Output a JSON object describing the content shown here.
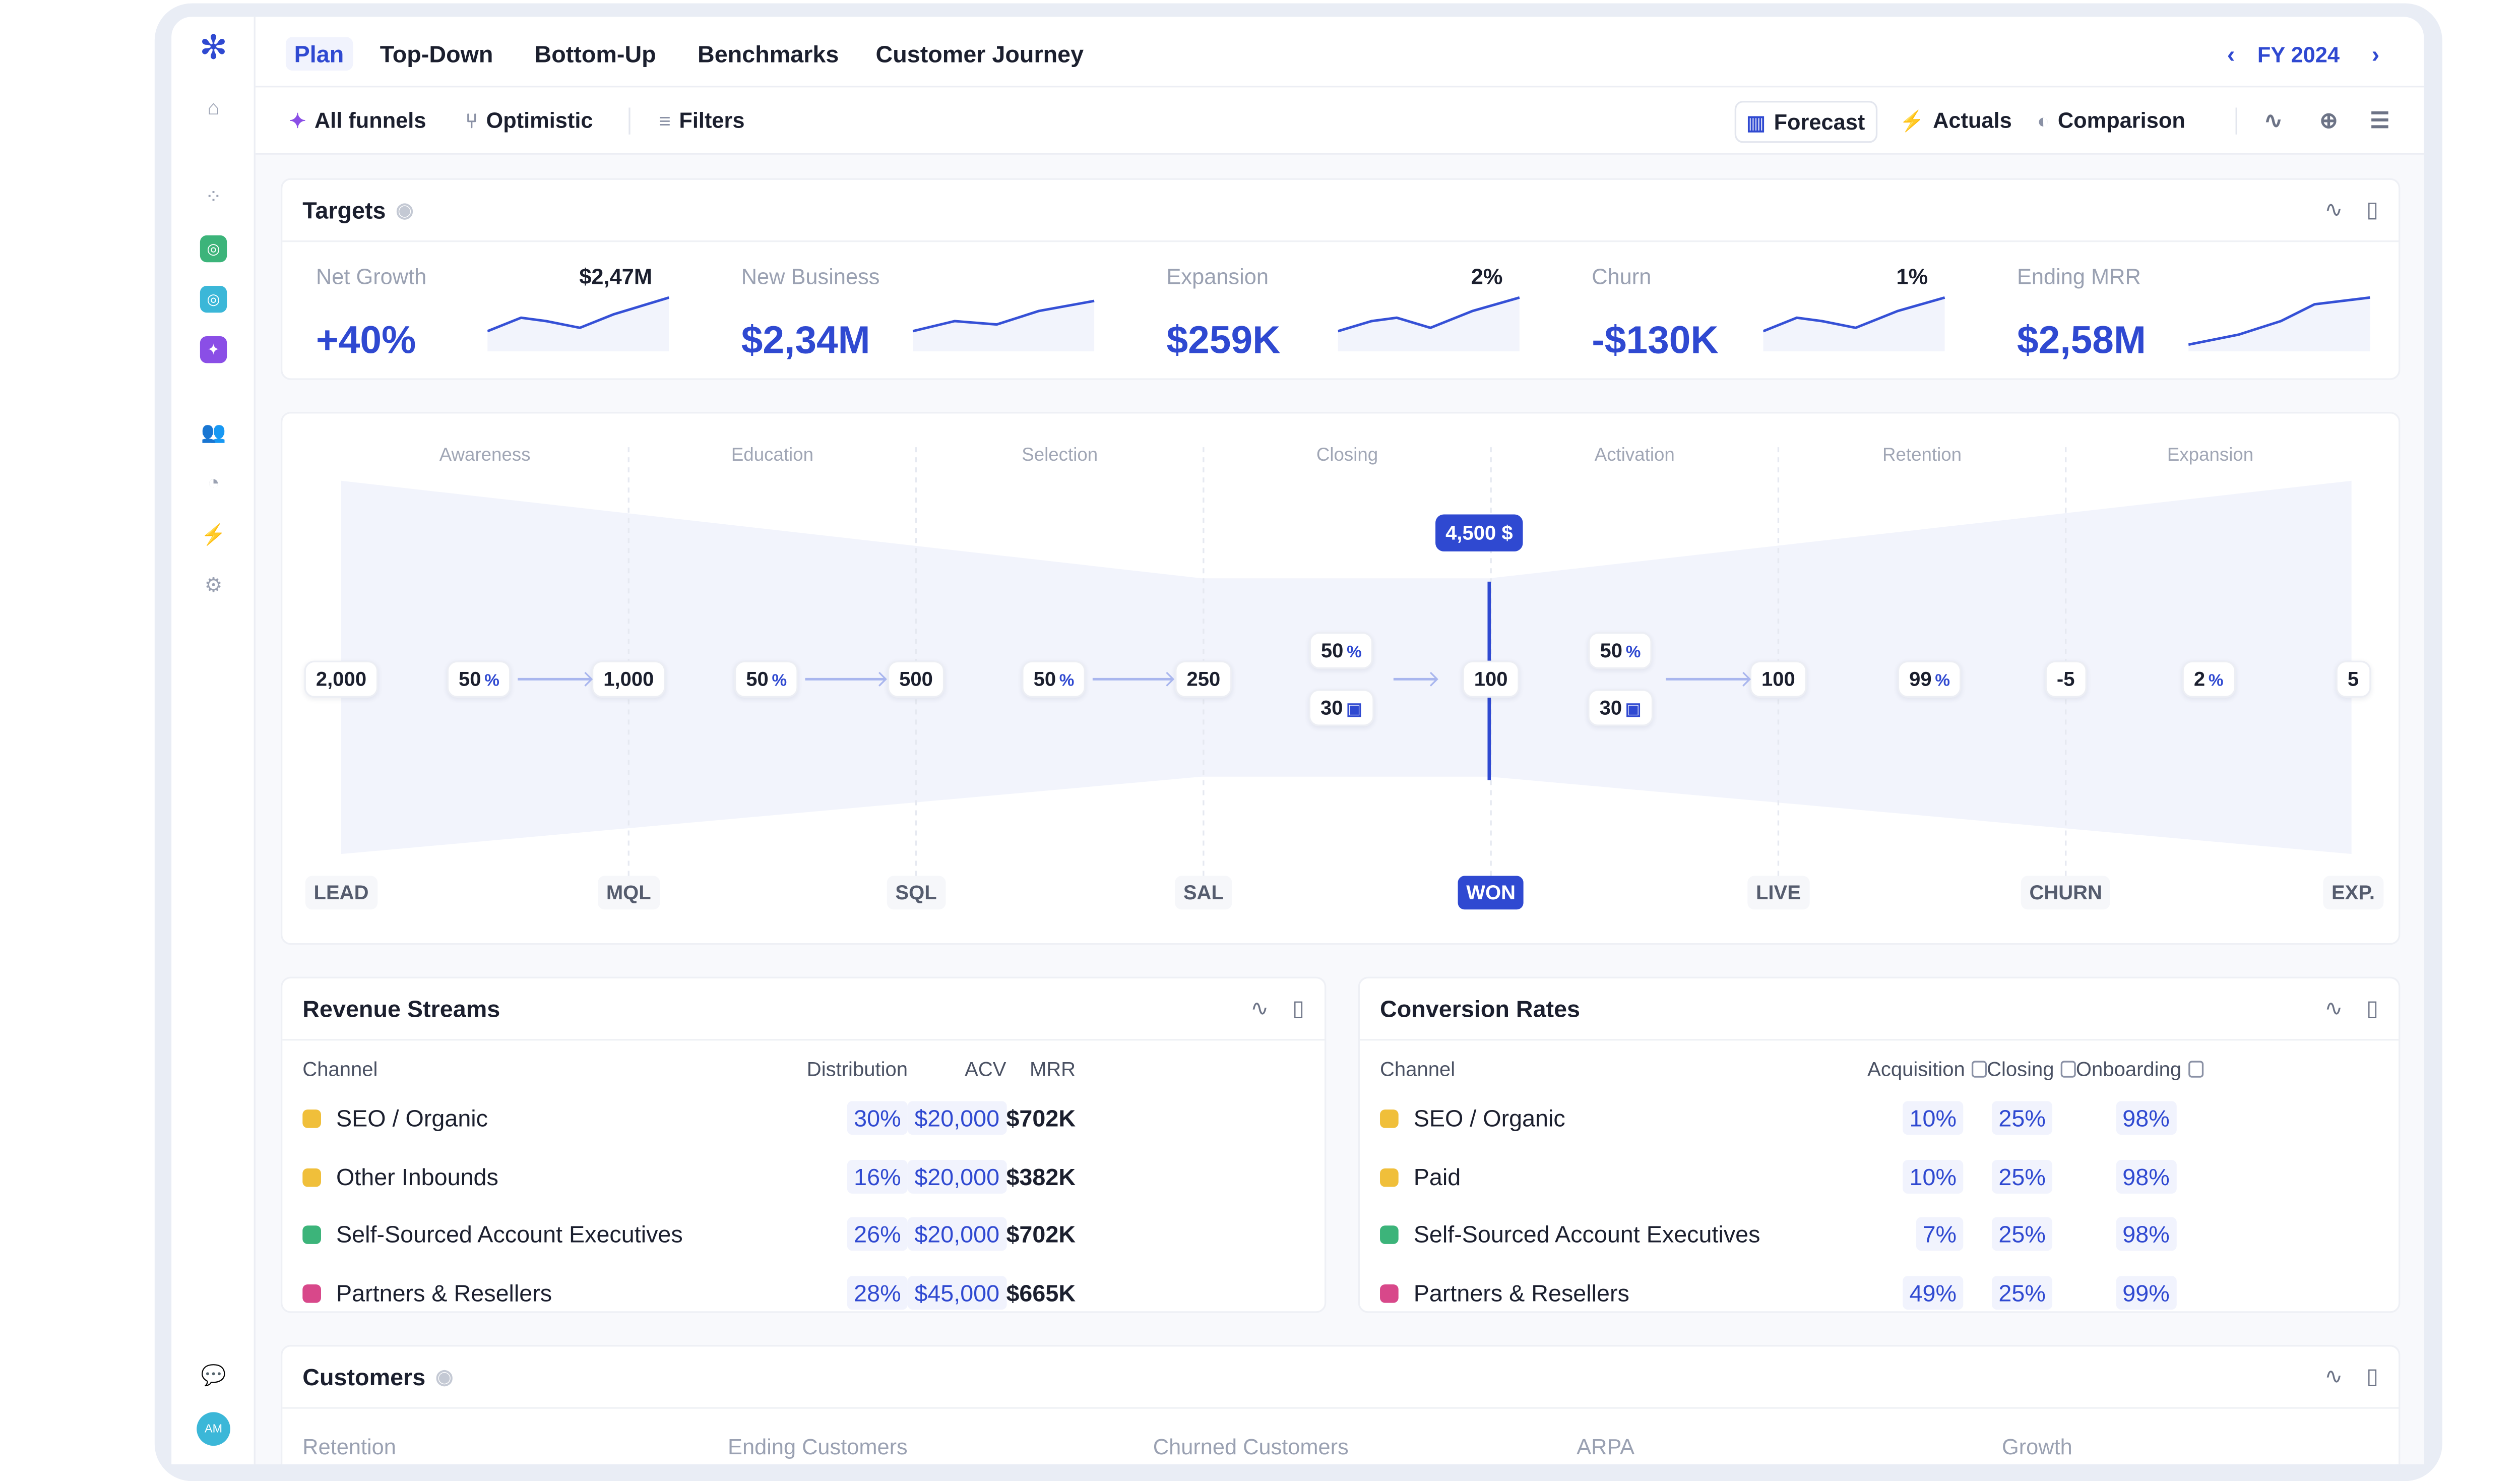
{
  "nav": {
    "tabs": [
      "Plan",
      "Top-Down",
      "Bottom-Up",
      "Benchmarks",
      "Customer Journey"
    ],
    "active": "Plan",
    "period": "FY 2024"
  },
  "toolbar": {
    "funnels": "All funnels",
    "scenario": "Optimistic",
    "filters": "Filters",
    "views": [
      "Forecast",
      "Actuals",
      "Comparison"
    ],
    "active_view": "Forecast"
  },
  "targets": {
    "title": "Targets",
    "kpis": [
      {
        "label": "Net Growth",
        "side": "$2,47M",
        "value": "+40%"
      },
      {
        "label": "New Business",
        "side": "",
        "value": "$2,34M"
      },
      {
        "label": "Expansion",
        "side": "2%",
        "value": "$259K"
      },
      {
        "label": "Churn",
        "side": "1%",
        "value": "-$130K"
      },
      {
        "label": "Ending MRR",
        "side": "",
        "value": "$2,58M"
      }
    ]
  },
  "funnel": {
    "phases": [
      "Awareness",
      "Education",
      "Selection",
      "Closing",
      "Activation",
      "Retention",
      "Expansion"
    ],
    "stages": [
      "LEAD",
      "MQL",
      "SQL",
      "SAL",
      "WON",
      "LIVE",
      "CHURN",
      "EXP."
    ],
    "active_stage": "WON",
    "stage_values": [
      "2,000",
      "1,000",
      "500",
      "250",
      "100",
      "100",
      "-5",
      "5"
    ],
    "rates": [
      "50",
      "50",
      "50",
      "50",
      "50",
      "99",
      "2"
    ],
    "rate_unit": "%",
    "cycle_days": [
      "30",
      "30"
    ],
    "tooltip": "4,500 $",
    "accent": "#2f49d1"
  },
  "revenue": {
    "title": "Revenue Streams",
    "columns": [
      "Channel",
      "Distribution",
      "ACV",
      "MRR"
    ],
    "rows": [
      {
        "channel": "SEO / Organic",
        "color": "#f0bf3a",
        "distribution": "30%",
        "acv": "$20,000",
        "mrr": "$702K"
      },
      {
        "channel": "Other Inbounds",
        "color": "#f0bf3a",
        "distribution": "16%",
        "acv": "$20,000",
        "mrr": "$382K"
      },
      {
        "channel": "Self-Sourced Account Executives",
        "color": "#3cb47a",
        "distribution": "26%",
        "acv": "$20,000",
        "mrr": "$702K"
      },
      {
        "channel": "Partners & Resellers",
        "color": "#d8488a",
        "distribution": "28%",
        "acv": "$45,000",
        "mrr": "$665K"
      }
    ]
  },
  "conversion": {
    "title": "Conversion Rates",
    "columns": [
      "Channel",
      "Acquisition",
      "Closing",
      "Onboarding"
    ],
    "rows": [
      {
        "channel": "SEO / Organic",
        "color": "#f0bf3a",
        "acquisition": "10%",
        "closing": "25%",
        "onboarding": "98%"
      },
      {
        "channel": "Paid",
        "color": "#f0bf3a",
        "acquisition": "10%",
        "closing": "25%",
        "onboarding": "98%"
      },
      {
        "channel": "Self-Sourced Account Executives",
        "color": "#3cb47a",
        "acquisition": "7%",
        "closing": "25%",
        "onboarding": "98%"
      },
      {
        "channel": "Partners & Resellers",
        "color": "#d8488a",
        "acquisition": "49%",
        "closing": "25%",
        "onboarding": "99%"
      }
    ]
  },
  "customers": {
    "title": "Customers",
    "columns": [
      "Retention",
      "Ending Customers",
      "Churned Customers",
      "ARPA",
      "Growth"
    ]
  },
  "user": {
    "initials": "AM"
  }
}
